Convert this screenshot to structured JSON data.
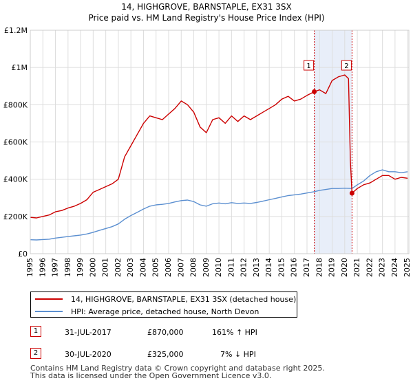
{
  "chart_data": {
    "type": "line",
    "title": "14, HIGHGROVE, BARNSTAPLE, EX31 3SX",
    "subtitle": "Price paid vs. HM Land Registry's House Price Index (HPI)",
    "xlabel": "",
    "ylabel": "",
    "xlim": [
      1995,
      2025.1
    ],
    "ylim": [
      0,
      1200000
    ],
    "y_ticks": [
      {
        "value": 0,
        "label": "£0"
      },
      {
        "value": 200000,
        "label": "£200K"
      },
      {
        "value": 400000,
        "label": "£400K"
      },
      {
        "value": 600000,
        "label": "£600K"
      },
      {
        "value": 800000,
        "label": "£800K"
      },
      {
        "value": 1000000,
        "label": "£1M"
      },
      {
        "value": 1200000,
        "label": "£1.2M"
      }
    ],
    "x_ticks": [
      "1995",
      "1996",
      "1997",
      "1998",
      "1999",
      "2000",
      "2001",
      "2002",
      "2003",
      "2004",
      "2005",
      "2006",
      "2007",
      "2008",
      "2009",
      "2010",
      "2011",
      "2012",
      "2013",
      "2014",
      "2015",
      "2016",
      "2017",
      "2018",
      "2019",
      "2020",
      "2021",
      "2022",
      "2023",
      "2024",
      "2025"
    ],
    "grid": true,
    "shaded_span": [
      2017.58,
      2020.58
    ],
    "series": [
      {
        "name": "14, HIGHGROVE, BARNSTAPLE, EX31 3SX (detached house)",
        "color": "#cc0000",
        "x": [
          1995,
          1995.5,
          1996,
          1996.5,
          1997,
          1997.5,
          1998,
          1998.5,
          1999,
          1999.5,
          2000,
          2000.5,
          2001,
          2001.5,
          2002,
          2002.5,
          2003,
          2003.5,
          2004,
          2004.5,
          2005,
          2005.5,
          2006,
          2006.5,
          2007,
          2007.5,
          2008,
          2008.5,
          2009,
          2009.5,
          2010,
          2010.5,
          2011,
          2011.5,
          2012,
          2012.5,
          2013,
          2013.5,
          2014,
          2014.5,
          2015,
          2015.5,
          2016,
          2016.5,
          2017,
          2017.58,
          2018,
          2018.5,
          2019,
          2019.5,
          2020,
          2020.3,
          2020.45,
          2020.58,
          2021,
          2021.5,
          2022,
          2022.5,
          2023,
          2023.5,
          2024,
          2024.5,
          2025
        ],
        "values": [
          195000,
          192000,
          200000,
          208000,
          225000,
          232000,
          245000,
          255000,
          270000,
          290000,
          330000,
          345000,
          360000,
          375000,
          400000,
          520000,
          580000,
          640000,
          700000,
          740000,
          730000,
          720000,
          750000,
          780000,
          820000,
          800000,
          760000,
          680000,
          650000,
          720000,
          730000,
          700000,
          740000,
          710000,
          740000,
          720000,
          740000,
          760000,
          780000,
          800000,
          830000,
          845000,
          820000,
          830000,
          850000,
          870000,
          880000,
          860000,
          930000,
          950000,
          960000,
          940000,
          500000,
          325000,
          350000,
          370000,
          380000,
          400000,
          420000,
          420000,
          400000,
          410000,
          405000
        ]
      },
      {
        "name": "HPI: Average price, detached house, North Devon",
        "color": "#5b8fd0",
        "x": [
          1995,
          1995.5,
          1996,
          1996.5,
          1997,
          1997.5,
          1998,
          1998.5,
          1999,
          1999.5,
          2000,
          2000.5,
          2001,
          2001.5,
          2002,
          2002.5,
          2003,
          2003.5,
          2004,
          2004.5,
          2005,
          2005.5,
          2006,
          2006.5,
          2007,
          2007.5,
          2008,
          2008.5,
          2009,
          2009.5,
          2010,
          2010.5,
          2011,
          2011.5,
          2012,
          2012.5,
          2013,
          2013.5,
          2014,
          2014.5,
          2015,
          2015.5,
          2016,
          2016.5,
          2017,
          2017.58,
          2018,
          2018.5,
          2019,
          2019.5,
          2020,
          2020.58,
          2021,
          2021.5,
          2022,
          2022.5,
          2023,
          2023.5,
          2024,
          2024.5,
          2025
        ],
        "values": [
          75000,
          74000,
          76000,
          78000,
          84000,
          88000,
          92000,
          96000,
          100000,
          106000,
          115000,
          125000,
          135000,
          145000,
          160000,
          185000,
          205000,
          222000,
          240000,
          255000,
          262000,
          265000,
          270000,
          278000,
          285000,
          288000,
          280000,
          262000,
          255000,
          268000,
          272000,
          268000,
          274000,
          270000,
          272000,
          270000,
          275000,
          282000,
          290000,
          297000,
          305000,
          312000,
          316000,
          320000,
          326000,
          333000,
          340000,
          345000,
          350000,
          350000,
          352000,
          350000,
          370000,
          390000,
          420000,
          440000,
          450000,
          440000,
          440000,
          435000,
          440000
        ]
      }
    ],
    "annotations": [
      {
        "label": "1",
        "x": 2017.58,
        "value": 870000
      },
      {
        "label": "2",
        "x": 2020.58,
        "value": 325000
      }
    ]
  },
  "legend": {
    "items": [
      {
        "label": "14, HIGHGROVE, BARNSTAPLE, EX31 3SX (detached house)",
        "color": "#cc0000"
      },
      {
        "label": "HPI: Average price, detached house, North Devon",
        "color": "#5b8fd0"
      }
    ]
  },
  "sales": [
    {
      "num": "1",
      "date": "31-JUL-2017",
      "price": "£870,000",
      "hpi": "161% ↑ HPI"
    },
    {
      "num": "2",
      "date": "30-JUL-2020",
      "price": "£325,000",
      "hpi": "7% ↓ HPI"
    }
  ],
  "footer": {
    "line1": "Contains HM Land Registry data © Crown copyright and database right 2025.",
    "line2": "This data is licensed under the Open Government Licence v3.0."
  }
}
